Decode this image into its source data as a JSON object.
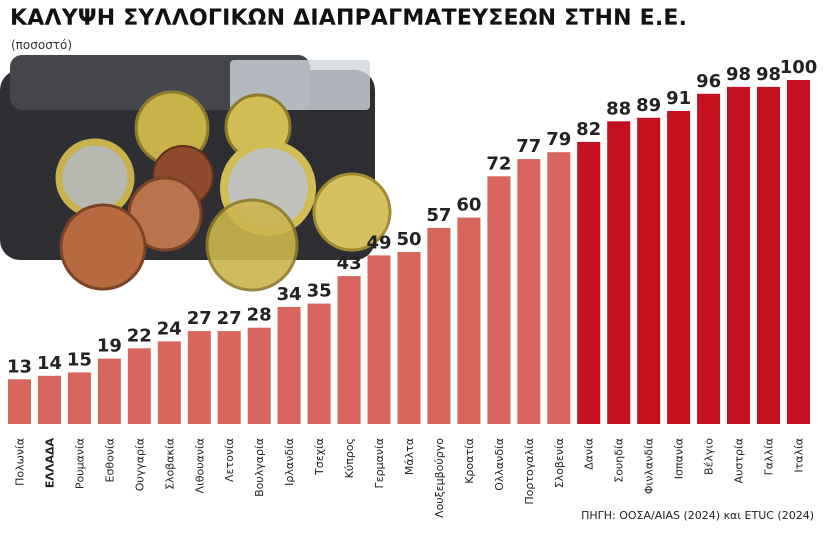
{
  "title": "ΚΑΛΥΨΗ ΣΥΛΛΟΓΙΚΩΝ ΔΙΑΠΡΑΓΜΑΤΕΥΣΕΩΝ ΣΤΗΝ Ε.Ε.",
  "subtitle": "(ποσοστό)",
  "source": "ΠΗΓΗ: ΟΟΣΑ/AIAS (2024) και ETUC (2024)",
  "colors": {
    "low": "#d9665c",
    "high": "#c4101f",
    "text": "#222222"
  },
  "chart_data": {
    "type": "bar",
    "title": "ΚΑΛΥΨΗ ΣΥΛΛΟΓΙΚΩΝ ΔΙΑΠΡΑΓΜΑΤΕΥΣΕΩΝ ΣΤΗΝ Ε.Ε.",
    "subtitle": "(ποσοστό)",
    "categories": [
      "Πολωνία",
      "ΕΛΛΑΔΑ",
      "Ρουμανία",
      "Εσθονία",
      "Ουγγαρία",
      "Σλοβακία",
      "Λιθουανία",
      "Λετονία",
      "Βουλγαρία",
      "Ιρλανδία",
      "Τσεχία",
      "Κύπρος",
      "Γερμανία",
      "Μάλτα",
      "Λουξεμβούργο",
      "Κροατία",
      "Ολλανδία",
      "Πορτογαλία",
      "Σλοβενία",
      "Δανία",
      "Σουηδία",
      "Φινλανδία",
      "Ισπανία",
      "Βέλγιο",
      "Αυστρία",
      "Γαλλία",
      "Ιταλία"
    ],
    "values": [
      13,
      14,
      15,
      19,
      22,
      24,
      27,
      27,
      28,
      34,
      35,
      43,
      49,
      50,
      57,
      60,
      72,
      77,
      79,
      82,
      88,
      89,
      91,
      96,
      98,
      98,
      100
    ],
    "highlight_category": "ΕΛΛΑΔΑ",
    "color_split_from_category": "Δανία",
    "ylim": [
      0,
      100
    ],
    "grid": false,
    "legend": "none",
    "xlabel": "",
    "ylabel": ""
  }
}
